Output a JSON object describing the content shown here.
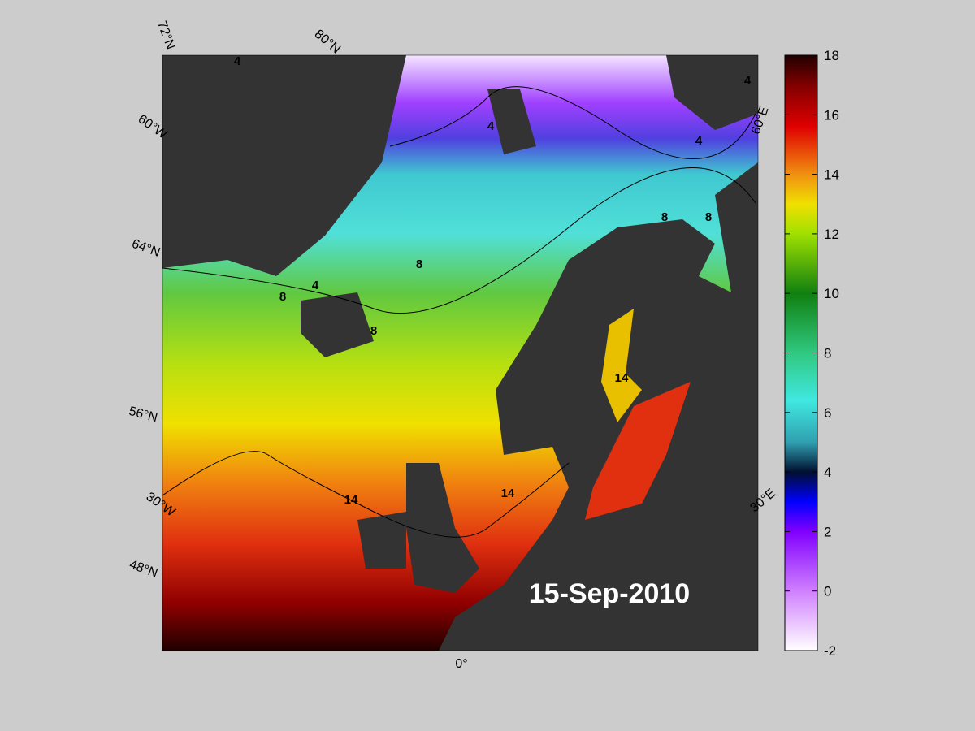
{
  "map": {
    "grid_labels": [
      "72°N",
      "80°N",
      "60°W",
      "64°N",
      "56°N",
      "30°W",
      "48°N",
      "0°",
      "30°E",
      "60°E"
    ],
    "contour_labels": [
      "4",
      "4",
      "4",
      "4",
      "4",
      "8",
      "8",
      "8",
      "8",
      "8",
      "14",
      "14",
      "14"
    ],
    "date": "15-Sep-2010"
  },
  "colorbar": {
    "lim": [
      -2,
      18
    ],
    "ticks": [
      -2,
      0,
      2,
      4,
      6,
      8,
      10,
      12,
      14,
      16,
      18
    ]
  }
}
